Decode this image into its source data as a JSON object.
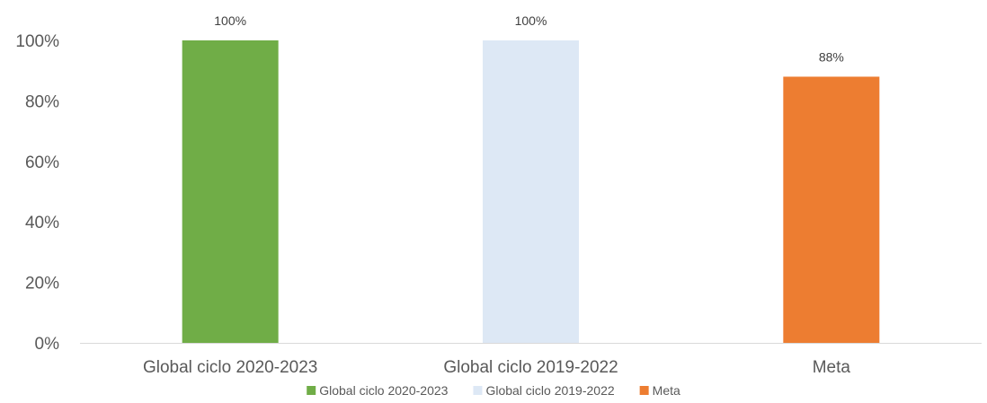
{
  "chart_data": {
    "type": "bar",
    "categories": [
      "Global ciclo 2020-2023",
      "Global ciclo 2019-2022",
      "Meta"
    ],
    "values": [
      100,
      100,
      88
    ],
    "data_labels": [
      "100%",
      "100%",
      "88%"
    ],
    "colors": [
      "#70ad47",
      "#dde8f5",
      "#ed7d31"
    ],
    "ylim": [
      0,
      100
    ],
    "yticks": [
      0,
      20,
      40,
      60,
      80,
      100
    ],
    "ytick_labels": [
      "0%",
      "20%",
      "40%",
      "60%",
      "80%",
      "100%"
    ],
    "grid": false,
    "legend": {
      "position": "bottom",
      "entries": [
        "Global ciclo 2020-2023",
        "Global ciclo 2019-2022",
        "Meta"
      ]
    },
    "axis_color": "#d9d9d9"
  }
}
